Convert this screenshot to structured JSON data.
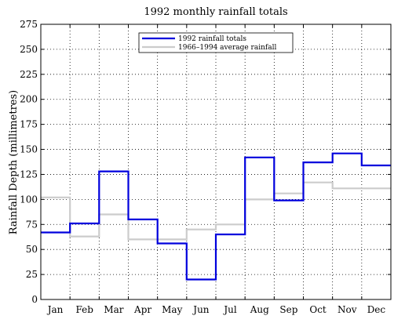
{
  "chart_data": {
    "type": "line",
    "title": "1992 monthly rainfall totals",
    "xlabel": "",
    "ylabel": "Rainfall Depth (millimetres)",
    "categories": [
      "Jan",
      "Feb",
      "Mar",
      "Apr",
      "May",
      "Jun",
      "Jul",
      "Aug",
      "Sep",
      "Oct",
      "Nov",
      "Dec"
    ],
    "ylim": [
      0,
      275
    ],
    "yticks": [
      0,
      25,
      50,
      75,
      100,
      125,
      150,
      175,
      200,
      225,
      250,
      275
    ],
    "grid": true,
    "step": true,
    "legend_position": "top-center",
    "series": [
      {
        "name": "1992 rainfall totals",
        "color": "#0000dd",
        "values": [
          67,
          76,
          128,
          80,
          56,
          20,
          65,
          142,
          99,
          137,
          146,
          134
        ]
      },
      {
        "name": "1966–1994 average rainfall",
        "color": "#cccccc",
        "values": [
          102,
          63,
          85,
          60,
          60,
          70,
          75,
          100,
          106,
          117,
          111,
          111
        ]
      }
    ]
  }
}
